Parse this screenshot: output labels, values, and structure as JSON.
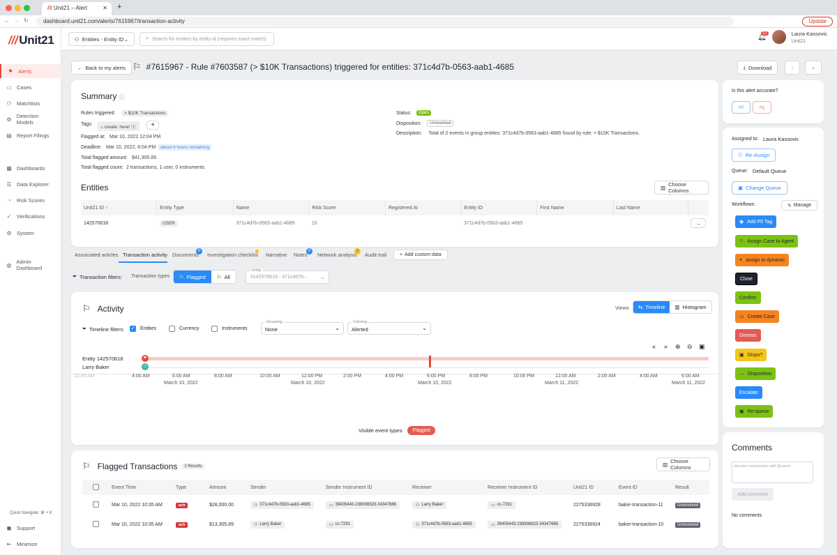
{
  "browser": {
    "tab_title": "Unit21 – Alert",
    "url": "dashboard.unit21.com/alerts/7615967/transaction-activity",
    "update_label": "Update"
  },
  "sidebar": {
    "logo": "Unit21",
    "items": [
      {
        "label": "Alerts",
        "icon": "flag-icon"
      },
      {
        "label": "Cases",
        "icon": "folder-icon"
      },
      {
        "label": "Matchlists",
        "icon": "user-plus-icon"
      },
      {
        "label": "Detection Models",
        "icon": "gear-icon"
      },
      {
        "label": "Report Filings",
        "icon": "document-icon"
      },
      {
        "label": "Dashboards",
        "icon": "grid-icon"
      },
      {
        "label": "Data Explorer",
        "icon": "list-icon"
      },
      {
        "label": "Risk Scores",
        "icon": "gauge-icon"
      },
      {
        "label": "Verifications",
        "icon": "check-icon"
      },
      {
        "label": "System",
        "icon": "settings-icon"
      },
      {
        "label": "Admin Dashboard",
        "icon": "globe-icon"
      }
    ],
    "quick_navigate": "Quick Navigate: ⌘ + K",
    "support": "Support",
    "minimize": "Minimize"
  },
  "topbar": {
    "entity_select": "Entities - Entity ID",
    "search_placeholder": "Search for entities by entity id (requires exact match)",
    "notification_count": "21",
    "user_name": "Laura Kassovic",
    "org_name": "Unit21"
  },
  "header": {
    "back_label": "Back to my alerts",
    "title": "#7615967 - Rule #7603587 (> $10K Transactions) triggered for entities: 371c4d7b-0563-aab1-4685",
    "download_label": "Download"
  },
  "summary": {
    "title": "Summary",
    "rules_label": "Rules triggered:",
    "rules_value": "> $10K Transactions",
    "tags_label": "Tags:",
    "tag_value": "create: here!",
    "flagged_at_label": "Flagged at:",
    "flagged_at_value": "Mar 10, 2022 12:04 PM",
    "deadline_label": "Deadline:",
    "deadline_value": "Mar 10, 2022, 6:04 PM",
    "deadline_badge": "about 4 hours remaining",
    "amount_label": "Total flagged amount:",
    "amount_value": "$41,305.89",
    "count_label": "Total flagged count:",
    "count_value": "2 transactions, 1 user, 0 instruments",
    "status_label": "Status:",
    "status_value": "Open",
    "disposition_label": "Disposition:",
    "disposition_value": "Unresolved",
    "description_label": "Description:",
    "description_value": "Total of 2 events in group entities: 371c4d7b-0563-aab1-4685 found by rule: > $10K Transactions."
  },
  "entities": {
    "title": "Entities",
    "choose_columns": "Choose Columns",
    "columns": [
      "Unit21 ID",
      "Entity Type",
      "Name",
      "Risk Score",
      "Registered At",
      "Entity ID",
      "First Name",
      "Last Name"
    ],
    "rows": [
      [
        "142570618",
        "USER",
        "371c4d7b-0563-aab1-4685",
        "15",
        "",
        "371c4d7b-0563-aab1-4685",
        "",
        ""
      ]
    ]
  },
  "tabs": {
    "items": [
      "Associated articles",
      "Transaction activity",
      "Documents",
      "Investigation checklist",
      "Narrative",
      "Notes",
      "Network analysis",
      "Audit trail"
    ],
    "documents_badge": "0",
    "notes_badge": "0",
    "network_badge": "1",
    "add_custom": "Add custom data"
  },
  "filters": {
    "label": "Transaction filters:",
    "types_label": "Transaction types",
    "flagged": "Flagged",
    "all": "All",
    "entity_label": "Entity",
    "entity_value": "#142570618 - 371c4d7b-..."
  },
  "activity": {
    "title": "Activity",
    "views_label": "Views",
    "timeline": "Timeline",
    "histogram": "Histogram",
    "timeline_filters": "Timeline filters:",
    "entities_cb": "Entities",
    "currency_cb": "Currency",
    "instruments_cb": "Instruments",
    "grouping_label": "Grouping",
    "grouping_value": "None",
    "coloring_label": "Coloring",
    "coloring_value": "Alerted",
    "row1": "Entity 142570618",
    "row2": "Larry Baker",
    "hours": [
      "12:00 AM",
      "4:00 AM",
      "6:00 AM",
      "8:00 AM",
      "10:00 AM",
      "12:00 PM",
      "2:00 PM",
      "4:00 PM",
      "6:00 PM",
      "8:00 PM",
      "10:00 PM",
      "12:00 AM",
      "2:00 AM",
      "4:00 AM",
      "6:00 AM"
    ],
    "dates": [
      "March 10, 2022",
      "March 10, 2022",
      "March 10, 2022",
      "March 11, 2022",
      "March 11, 2022"
    ],
    "visible_types": "Visible event types:",
    "flagged_pill": "Flagged"
  },
  "flagged": {
    "title": "Flagged Transactions",
    "count": "2 Results",
    "choose_columns": "Choose Columns",
    "columns": [
      "Event Time",
      "Type",
      "Amount",
      "Sender",
      "Sender Instrument ID",
      "Receiver",
      "Receiver Instrument ID",
      "Unit21 ID",
      "Event ID",
      "Result"
    ],
    "rows": [
      {
        "time": "Mar 10, 2022 10:35 AM",
        "type": "ach",
        "amount": "$28,000.00",
        "sender": "371c4d7b-0563-aab1-4685",
        "sender_inst": "39405443-238938823-34347686",
        "receiver": "Larry Baker",
        "receiver_inst": "cc-7291",
        "uid": "2275336928",
        "event": "baker-transaction-11",
        "result": "Unresolved"
      },
      {
        "time": "Mar 10, 2022 10:35 AM",
        "type": "ach",
        "amount": "$13,305.89",
        "sender": "Larry Baker",
        "sender_inst": "cc-7291",
        "receiver": "371c4d7b-0563-aab1-4685",
        "receiver_inst": "39405443-238938823-34347686",
        "uid": "2275336924",
        "event": "baker-transaction-10",
        "result": "Unresolved"
      }
    ]
  },
  "right": {
    "accurate_q": "Is this alert accurate?",
    "assigned_label": "Assigned to:",
    "assigned_value": "Laura Kassovic",
    "reassign": "Re-Assign",
    "queue_label": "Queue:",
    "queue_value": "Default Queue",
    "change_queue": "Change Queue",
    "workflows_label": "Workflows:",
    "manage": "Manage",
    "workflows": [
      {
        "label": "Add P0 Tag",
        "color": "#2a8af6"
      },
      {
        "label": "Assign Case to Agent",
        "color": "#7cc213"
      },
      {
        "label": "assign to dynamic",
        "color": "#f5841f"
      },
      {
        "label": "Close",
        "color": "#1f2330"
      },
      {
        "label": "Confirm",
        "color": "#7cc213"
      },
      {
        "label": "Create Case",
        "color": "#f5841f"
      },
      {
        "label": "Dismiss",
        "color": "#e45a55"
      },
      {
        "label": "Dispo?",
        "color": "#f5c518"
      },
      {
        "label": "Disposition",
        "color": "#7cc213"
      },
      {
        "label": "Escalate",
        "color": "#2a8af6"
      },
      {
        "label": "Re-queue",
        "color": "#7cc213"
      }
    ],
    "comments_title": "Comments",
    "comments_placeholder": "Mention teammates with @name",
    "add_comment": "Add comment",
    "no_comments": "No comments"
  }
}
